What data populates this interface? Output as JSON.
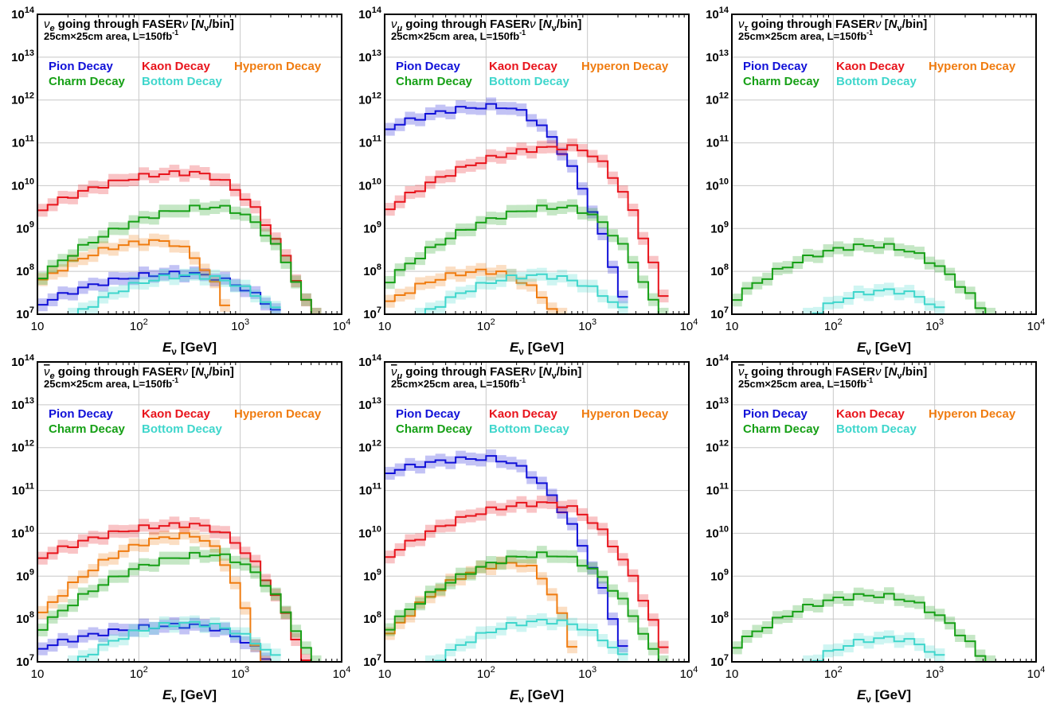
{
  "chart_data": [
    {
      "type": "line",
      "title_particle": "ν",
      "title_sub": "e",
      "title_bar": false,
      "title_rest": " going through FASER",
      "title_nu": "ν",
      "title_unit_open": " [",
      "title_N": "N",
      "title_N_sub": "ν",
      "title_unit_close": "/bin]",
      "subtitle": "25cm×25cm area, L=150fb",
      "subtitle_sup": "-1",
      "xlabel_main": "E",
      "xlabel_sub": "ν",
      "xlabel_unit": " [GeV]",
      "x_scale": "log",
      "y_scale": "log",
      "xlim": [
        10,
        10000
      ],
      "ylim": [
        10000000,
        100000000000000
      ],
      "x_ticks": [
        {
          "base": "10",
          "exp": ""
        },
        {
          "base": "10",
          "exp": "2"
        },
        {
          "base": "10",
          "exp": "3"
        },
        {
          "base": "10",
          "exp": "4"
        }
      ],
      "y_ticks": [
        {
          "base": "10",
          "exp": "7"
        },
        {
          "base": "10",
          "exp": "8"
        },
        {
          "base": "10",
          "exp": "9"
        },
        {
          "base": "10",
          "exp": "10"
        },
        {
          "base": "10",
          "exp": "11"
        },
        {
          "base": "10",
          "exp": "12"
        },
        {
          "base": "10",
          "exp": "13"
        },
        {
          "base": "10",
          "exp": "14"
        }
      ],
      "grid": true,
      "legend": [
        "Pion Decay",
        "Kaon Decay",
        "Hyperon Decay",
        "Charm Decay",
        "Bottom Decay"
      ],
      "series": [
        {
          "name": "Pion Decay",
          "bins_log10E": [
            1.0,
            2.4,
            3.4
          ],
          "log10N_peak": [
            7.2,
            7.95,
            7.0
          ]
        },
        {
          "name": "Kaon Decay",
          "bins_log10E": [
            1.0,
            2.5,
            3.7
          ],
          "log10N_peak": [
            9.4,
            10.3,
            7.0
          ]
        },
        {
          "name": "Hyperon Decay",
          "bins_log10E": [
            1.0,
            2.2,
            2.9
          ],
          "log10N_peak": [
            7.7,
            8.7,
            7.0
          ]
        },
        {
          "name": "Charm Decay",
          "bins_log10E": [
            1.0,
            2.75,
            3.7
          ],
          "log10N_peak": [
            7.8,
            9.5,
            7.0
          ]
        },
        {
          "name": "Bottom Decay",
          "bins_log10E": [
            1.4,
            2.5,
            3.4
          ],
          "log10N_peak": [
            7.0,
            7.9,
            7.0
          ]
        }
      ]
    },
    {
      "type": "line",
      "title_particle": "ν",
      "title_sub": "μ",
      "title_bar": false,
      "title_rest": " going through FASER",
      "title_nu": "ν",
      "title_unit_open": " [",
      "title_N": "N",
      "title_N_sub": "ν",
      "title_unit_close": "/bin]",
      "subtitle": "25cm×25cm area, L=150fb",
      "subtitle_sup": "-1",
      "xlabel_main": "E",
      "xlabel_sub": "ν",
      "xlabel_unit": " [GeV]",
      "x_scale": "log",
      "y_scale": "log",
      "xlim": [
        10,
        10000
      ],
      "ylim": [
        10000000,
        100000000000000
      ],
      "x_ticks": [
        {
          "base": "10",
          "exp": ""
        },
        {
          "base": "10",
          "exp": "2"
        },
        {
          "base": "10",
          "exp": "3"
        },
        {
          "base": "10",
          "exp": "4"
        }
      ],
      "y_ticks": [
        {
          "base": "10",
          "exp": "7"
        },
        {
          "base": "10",
          "exp": "8"
        },
        {
          "base": "10",
          "exp": "9"
        },
        {
          "base": "10",
          "exp": "10"
        },
        {
          "base": "10",
          "exp": "11"
        },
        {
          "base": "10",
          "exp": "12"
        },
        {
          "base": "10",
          "exp": "13"
        },
        {
          "base": "10",
          "exp": "14"
        }
      ],
      "grid": true,
      "legend": [
        "Pion Decay",
        "Kaon Decay",
        "Hyperon Decay",
        "Charm Decay",
        "Bottom Decay"
      ],
      "series": [
        {
          "name": "Pion Decay",
          "bins_log10E": [
            1.0,
            2.1,
            3.4
          ],
          "log10N_peak": [
            11.3,
            11.85,
            7.0
          ]
        },
        {
          "name": "Kaon Decay",
          "bins_log10E": [
            1.0,
            2.8,
            3.8
          ],
          "log10N_peak": [
            9.4,
            10.9,
            7.0
          ]
        },
        {
          "name": "Hyperon Decay",
          "bins_log10E": [
            1.0,
            2.0,
            2.7
          ],
          "log10N_peak": [
            7.2,
            8.0,
            7.0
          ]
        },
        {
          "name": "Charm Decay",
          "bins_log10E": [
            1.0,
            2.75,
            3.7
          ],
          "log10N_peak": [
            7.7,
            9.5,
            7.0
          ]
        },
        {
          "name": "Bottom Decay",
          "bins_log10E": [
            1.4,
            2.5,
            3.4
          ],
          "log10N_peak": [
            7.0,
            7.9,
            7.0
          ]
        }
      ]
    },
    {
      "type": "line",
      "title_particle": "ν",
      "title_sub": "τ",
      "title_bar": false,
      "title_rest": " going through FASER",
      "title_nu": "ν",
      "title_unit_open": " [",
      "title_N": "N",
      "title_N_sub": "ν",
      "title_unit_close": "/bin]",
      "subtitle": "25cm×25cm area, L=150fb",
      "subtitle_sup": "-1",
      "xlabel_main": "E",
      "xlabel_sub": "ν",
      "xlabel_unit": " [GeV]",
      "x_scale": "log",
      "y_scale": "log",
      "xlim": [
        10,
        10000
      ],
      "ylim": [
        10000000,
        100000000000000
      ],
      "x_ticks": [
        {
          "base": "10",
          "exp": ""
        },
        {
          "base": "10",
          "exp": "2"
        },
        {
          "base": "10",
          "exp": "3"
        },
        {
          "base": "10",
          "exp": "4"
        }
      ],
      "y_ticks": [
        {
          "base": "10",
          "exp": "7"
        },
        {
          "base": "10",
          "exp": "8"
        },
        {
          "base": "10",
          "exp": "9"
        },
        {
          "base": "10",
          "exp": "10"
        },
        {
          "base": "10",
          "exp": "11"
        },
        {
          "base": "10",
          "exp": "12"
        },
        {
          "base": "10",
          "exp": "13"
        },
        {
          "base": "10",
          "exp": "14"
        }
      ],
      "grid": true,
      "legend": [
        "Pion Decay",
        "Kaon Decay",
        "Hyperon Decay",
        "Charm Decay",
        "Bottom Decay"
      ],
      "series": [
        {
          "name": "Charm Decay",
          "bins_log10E": [
            1.0,
            2.4,
            3.5
          ],
          "log10N_peak": [
            7.3,
            8.6,
            7.0
          ]
        },
        {
          "name": "Bottom Decay",
          "bins_log10E": [
            1.8,
            2.55,
            3.1
          ],
          "log10N_peak": [
            7.0,
            7.55,
            7.0
          ]
        }
      ]
    },
    {
      "type": "line",
      "title_particle": "ν",
      "title_sub": "e",
      "title_bar": true,
      "title_rest": " going through FASER",
      "title_nu": "ν",
      "title_unit_open": " [",
      "title_N": "N",
      "title_N_sub": "ν",
      "title_unit_close": "/bin]",
      "subtitle": "25cm×25cm area, L=150fb",
      "subtitle_sup": "-1",
      "xlabel_main": "E",
      "xlabel_sub": "ν",
      "xlabel_unit": " [GeV]",
      "x_scale": "log",
      "y_scale": "log",
      "xlim": [
        10,
        10000
      ],
      "ylim": [
        10000000,
        100000000000000
      ],
      "x_ticks": [
        {
          "base": "10",
          "exp": ""
        },
        {
          "base": "10",
          "exp": "2"
        },
        {
          "base": "10",
          "exp": "3"
        },
        {
          "base": "10",
          "exp": "4"
        }
      ],
      "y_ticks": [
        {
          "base": "10",
          "exp": "7"
        },
        {
          "base": "10",
          "exp": "8"
        },
        {
          "base": "10",
          "exp": "9"
        },
        {
          "base": "10",
          "exp": "10"
        },
        {
          "base": "10",
          "exp": "11"
        },
        {
          "base": "10",
          "exp": "12"
        },
        {
          "base": "10",
          "exp": "13"
        },
        {
          "base": "10",
          "exp": "14"
        }
      ],
      "grid": true,
      "legend": [
        "Pion Decay",
        "Kaon Decay",
        "Hyperon Decay",
        "Charm Decay",
        "Bottom Decay"
      ],
      "series": [
        {
          "name": "Pion Decay",
          "bins_log10E": [
            1.0,
            2.5,
            3.3
          ],
          "log10N_peak": [
            7.3,
            7.85,
            7.0
          ]
        },
        {
          "name": "Kaon Decay",
          "bins_log10E": [
            1.0,
            2.5,
            3.65
          ],
          "log10N_peak": [
            9.4,
            10.2,
            7.0
          ]
        },
        {
          "name": "Hyperon Decay",
          "bins_log10E": [
            1.0,
            2.5,
            3.2
          ],
          "log10N_peak": [
            8.0,
            9.95,
            7.0
          ]
        },
        {
          "name": "Charm Decay",
          "bins_log10E": [
            1.0,
            2.7,
            3.7
          ],
          "log10N_peak": [
            7.7,
            9.5,
            7.0
          ]
        },
        {
          "name": "Bottom Decay",
          "bins_log10E": [
            1.4,
            2.5,
            3.4
          ],
          "log10N_peak": [
            7.0,
            7.9,
            7.0
          ]
        }
      ]
    },
    {
      "type": "line",
      "title_particle": "ν",
      "title_sub": "μ",
      "title_bar": true,
      "title_rest": " going through FASER",
      "title_nu": "ν",
      "title_unit_open": " [",
      "title_N": "N",
      "title_N_sub": "ν",
      "title_unit_close": "/bin]",
      "subtitle": "25cm×25cm area, L=150fb",
      "subtitle_sup": "-1",
      "xlabel_main": "E",
      "xlabel_sub": "ν",
      "xlabel_unit": " [GeV]",
      "x_scale": "log",
      "y_scale": "log",
      "xlim": [
        10,
        10000
      ],
      "ylim": [
        10000000,
        100000000000000
      ],
      "x_ticks": [
        {
          "base": "10",
          "exp": ""
        },
        {
          "base": "10",
          "exp": "2"
        },
        {
          "base": "10",
          "exp": "3"
        },
        {
          "base": "10",
          "exp": "4"
        }
      ],
      "y_ticks": [
        {
          "base": "10",
          "exp": "7"
        },
        {
          "base": "10",
          "exp": "8"
        },
        {
          "base": "10",
          "exp": "9"
        },
        {
          "base": "10",
          "exp": "10"
        },
        {
          "base": "10",
          "exp": "11"
        },
        {
          "base": "10",
          "exp": "12"
        },
        {
          "base": "10",
          "exp": "13"
        },
        {
          "base": "10",
          "exp": "14"
        }
      ],
      "grid": true,
      "legend": [
        "Pion Decay",
        "Kaon Decay",
        "Hyperon Decay",
        "Charm Decay",
        "Bottom Decay"
      ],
      "series": [
        {
          "name": "Pion Decay",
          "bins_log10E": [
            1.0,
            2.0,
            3.4
          ],
          "log10N_peak": [
            11.4,
            11.75,
            7.0
          ]
        },
        {
          "name": "Kaon Decay",
          "bins_log10E": [
            1.0,
            2.6,
            3.8
          ],
          "log10N_peak": [
            9.4,
            10.7,
            7.0
          ]
        },
        {
          "name": "Hyperon Decay",
          "bins_log10E": [
            1.0,
            2.3,
            2.9
          ],
          "log10N_peak": [
            7.5,
            9.3,
            7.0
          ]
        },
        {
          "name": "Charm Decay",
          "bins_log10E": [
            1.0,
            2.6,
            3.7
          ],
          "log10N_peak": [
            7.7,
            9.5,
            7.0
          ]
        },
        {
          "name": "Bottom Decay",
          "bins_log10E": [
            1.5,
            2.6,
            3.4
          ],
          "log10N_peak": [
            7.0,
            7.95,
            7.0
          ]
        }
      ]
    },
    {
      "type": "line",
      "title_particle": "ν",
      "title_sub": "τ",
      "title_bar": true,
      "title_rest": " going through FASER",
      "title_nu": "ν",
      "title_unit_open": " [",
      "title_N": "N",
      "title_N_sub": "ν",
      "title_unit_close": "/bin]",
      "subtitle": "25cm×25cm area, L=150fb",
      "subtitle_sup": "-1",
      "xlabel_main": "E",
      "xlabel_sub": "ν",
      "xlabel_unit": " [GeV]",
      "x_scale": "log",
      "y_scale": "log",
      "xlim": [
        10,
        10000
      ],
      "ylim": [
        10000000,
        100000000000000
      ],
      "x_ticks": [
        {
          "base": "10",
          "exp": ""
        },
        {
          "base": "10",
          "exp": "2"
        },
        {
          "base": "10",
          "exp": "3"
        },
        {
          "base": "10",
          "exp": "4"
        }
      ],
      "y_ticks": [
        {
          "base": "10",
          "exp": "7"
        },
        {
          "base": "10",
          "exp": "8"
        },
        {
          "base": "10",
          "exp": "9"
        },
        {
          "base": "10",
          "exp": "10"
        },
        {
          "base": "10",
          "exp": "11"
        },
        {
          "base": "10",
          "exp": "12"
        },
        {
          "base": "10",
          "exp": "13"
        },
        {
          "base": "10",
          "exp": "14"
        }
      ],
      "grid": true,
      "legend": [
        "Pion Decay",
        "Kaon Decay",
        "Hyperon Decay",
        "Charm Decay",
        "Bottom Decay"
      ],
      "series": [
        {
          "name": "Charm Decay",
          "bins_log10E": [
            1.0,
            2.4,
            3.5
          ],
          "log10N_peak": [
            7.3,
            8.55,
            7.0
          ]
        },
        {
          "name": "Bottom Decay",
          "bins_log10E": [
            1.8,
            2.55,
            3.1
          ],
          "log10N_peak": [
            7.0,
            7.55,
            7.0
          ]
        }
      ]
    }
  ],
  "colors": {
    "Pion Decay": "#1010d8",
    "Kaon Decay": "#e8141c",
    "Hyperon Decay": "#f07c10",
    "Charm Decay": "#16a016",
    "Bottom Decay": "#3fd6cc",
    "grid": "#c8c8c8",
    "axis": "#000000"
  }
}
